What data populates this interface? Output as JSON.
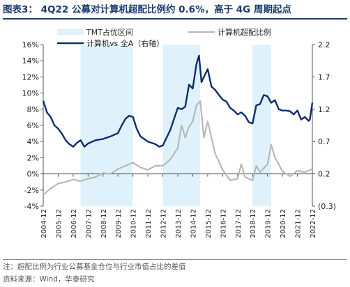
{
  "title": "图表3：  4Q22 公募对计算机超配比例约 0.6%，高于 4G 周期起点",
  "chart_data": {
    "type": "line",
    "legend": [
      {
        "name": "TMT占优区间",
        "kind": "band",
        "color": "#dff2fb"
      },
      {
        "name": "计算机超配比例",
        "kind": "line",
        "color": "#b8b8b8"
      },
      {
        "name": "计算机vs 全A（右轴）",
        "kind": "line",
        "color": "#0d2c6e"
      }
    ],
    "left_axis": {
      "ticks": [
        16,
        14,
        12,
        10,
        8,
        6,
        4,
        2,
        0,
        -2,
        -4
      ],
      "tick_labels": [
        "16%",
        "14%",
        "12%",
        "10%",
        "8%",
        "6%",
        "4%",
        "2%",
        "0%",
        "-2%",
        "-4%"
      ],
      "ylim": [
        -4,
        16
      ]
    },
    "right_axis": {
      "ticks": [
        2.2,
        1.7,
        1.2,
        0.7,
        0.2,
        -0.3
      ],
      "tick_labels": [
        "2.2",
        "1.7",
        "1.2",
        "0.7",
        "0.2",
        "(0.3)"
      ],
      "ylim": [
        -0.3,
        2.2
      ]
    },
    "x_ticks": [
      "2004-12",
      "2005-12",
      "2006-12",
      "2007-12",
      "2008-12",
      "2009-12",
      "2010-12",
      "2011-12",
      "2012-12",
      "2013-12",
      "2014-12",
      "2015-12",
      "2016-12",
      "2017-12",
      "2018-12",
      "2019-12",
      "2020-12",
      "2021-12",
      "2022-12"
    ],
    "tmt_bands": [
      [
        "2007-06",
        "2010-12"
      ],
      [
        "2012-12",
        "2015-06"
      ],
      [
        "2018-12",
        "2020-03"
      ]
    ],
    "series_overweight": [
      [
        "2004-12",
        -2.6
      ],
      [
        "2005-06",
        -1.8
      ],
      [
        "2005-12",
        -1.2
      ],
      [
        "2006-06",
        -1.0
      ],
      [
        "2006-12",
        -0.7
      ],
      [
        "2007-06",
        -0.9
      ],
      [
        "2007-12",
        -0.6
      ],
      [
        "2008-06",
        -0.4
      ],
      [
        "2008-12",
        0.1
      ],
      [
        "2009-06",
        0.0
      ],
      [
        "2009-12",
        0.6
      ],
      [
        "2010-06",
        1.0
      ],
      [
        "2010-12",
        1.4
      ],
      [
        "2011-06",
        0.8
      ],
      [
        "2011-12",
        0.5
      ],
      [
        "2012-06",
        1.0
      ],
      [
        "2012-12",
        1.0
      ],
      [
        "2013-06",
        1.8
      ],
      [
        "2013-12",
        3.2
      ],
      [
        "2014-03",
        6.0
      ],
      [
        "2014-06",
        4.5
      ],
      [
        "2014-09",
        5.8
      ],
      [
        "2014-12",
        6.5
      ],
      [
        "2015-03",
        8.5
      ],
      [
        "2015-06",
        9.0
      ],
      [
        "2015-09",
        4.5
      ],
      [
        "2015-12",
        6.5
      ],
      [
        "2016-06",
        2.5
      ],
      [
        "2016-12",
        0.5
      ],
      [
        "2017-06",
        -0.8
      ],
      [
        "2017-12",
        -0.6
      ],
      [
        "2018-03",
        1.2
      ],
      [
        "2018-06",
        -0.4
      ],
      [
        "2018-12",
        -0.8
      ],
      [
        "2019-03",
        1.0
      ],
      [
        "2019-06",
        0.2
      ],
      [
        "2019-09",
        0.7
      ],
      [
        "2019-12",
        1.2
      ],
      [
        "2020-03",
        3.6
      ],
      [
        "2020-06",
        2.0
      ],
      [
        "2020-09",
        1.2
      ],
      [
        "2020-12",
        0.3
      ],
      [
        "2021-06",
        -0.3
      ],
      [
        "2021-12",
        0.4
      ],
      [
        "2022-06",
        0.2
      ],
      [
        "2022-12",
        0.6
      ]
    ],
    "series_relative": [
      [
        "2004-12",
        1.33
      ],
      [
        "2005-03",
        1.15
      ],
      [
        "2005-06",
        1.08
      ],
      [
        "2005-09",
        0.95
      ],
      [
        "2005-12",
        0.9
      ],
      [
        "2006-03",
        0.82
      ],
      [
        "2006-06",
        0.72
      ],
      [
        "2006-09",
        0.66
      ],
      [
        "2006-12",
        0.62
      ],
      [
        "2007-03",
        0.68
      ],
      [
        "2007-06",
        0.72
      ],
      [
        "2007-09",
        0.62
      ],
      [
        "2007-12",
        0.67
      ],
      [
        "2008-06",
        0.72
      ],
      [
        "2008-12",
        0.74
      ],
      [
        "2009-06",
        0.78
      ],
      [
        "2009-12",
        0.83
      ],
      [
        "2010-03",
        0.95
      ],
      [
        "2010-06",
        1.05
      ],
      [
        "2010-09",
        1.1
      ],
      [
        "2010-12",
        1.08
      ],
      [
        "2011-03",
        0.9
      ],
      [
        "2011-06",
        0.78
      ],
      [
        "2011-09",
        0.74
      ],
      [
        "2011-12",
        0.7
      ],
      [
        "2012-03",
        0.68
      ],
      [
        "2012-06",
        0.66
      ],
      [
        "2012-09",
        0.62
      ],
      [
        "2012-12",
        0.64
      ],
      [
        "2013-03",
        0.76
      ],
      [
        "2013-06",
        0.88
      ],
      [
        "2013-09",
        1.05
      ],
      [
        "2013-12",
        1.22
      ],
      [
        "2014-03",
        1.2
      ],
      [
        "2014-06",
        1.24
      ],
      [
        "2014-09",
        1.58
      ],
      [
        "2014-12",
        1.52
      ],
      [
        "2015-03",
        1.9
      ],
      [
        "2015-05",
        2.03
      ],
      [
        "2015-07",
        1.62
      ],
      [
        "2015-09",
        1.7
      ],
      [
        "2015-12",
        1.82
      ],
      [
        "2016-03",
        1.55
      ],
      [
        "2016-06",
        1.5
      ],
      [
        "2016-09",
        1.42
      ],
      [
        "2016-12",
        1.35
      ],
      [
        "2017-03",
        1.32
      ],
      [
        "2017-06",
        1.22
      ],
      [
        "2017-09",
        1.18
      ],
      [
        "2017-12",
        1.12
      ],
      [
        "2018-03",
        1.15
      ],
      [
        "2018-06",
        1.1
      ],
      [
        "2018-09",
        1.0
      ],
      [
        "2018-12",
        0.98
      ],
      [
        "2019-03",
        1.26
      ],
      [
        "2019-06",
        1.28
      ],
      [
        "2019-09",
        1.42
      ],
      [
        "2019-12",
        1.4
      ],
      [
        "2020-03",
        1.3
      ],
      [
        "2020-06",
        1.34
      ],
      [
        "2020-09",
        1.2
      ],
      [
        "2020-12",
        1.18
      ],
      [
        "2021-03",
        1.18
      ],
      [
        "2021-06",
        1.17
      ],
      [
        "2021-09",
        1.12
      ],
      [
        "2021-12",
        1.18
      ],
      [
        "2022-03",
        1.04
      ],
      [
        "2022-06",
        1.08
      ],
      [
        "2022-09",
        1.02
      ],
      [
        "2022-10",
        1.04
      ],
      [
        "2022-12",
        1.3
      ]
    ]
  },
  "notes": {
    "note": "注：超配比例为行业公募基金仓位与行业市值占比的差值",
    "source": "资料来源：Wind，华泰研究"
  }
}
